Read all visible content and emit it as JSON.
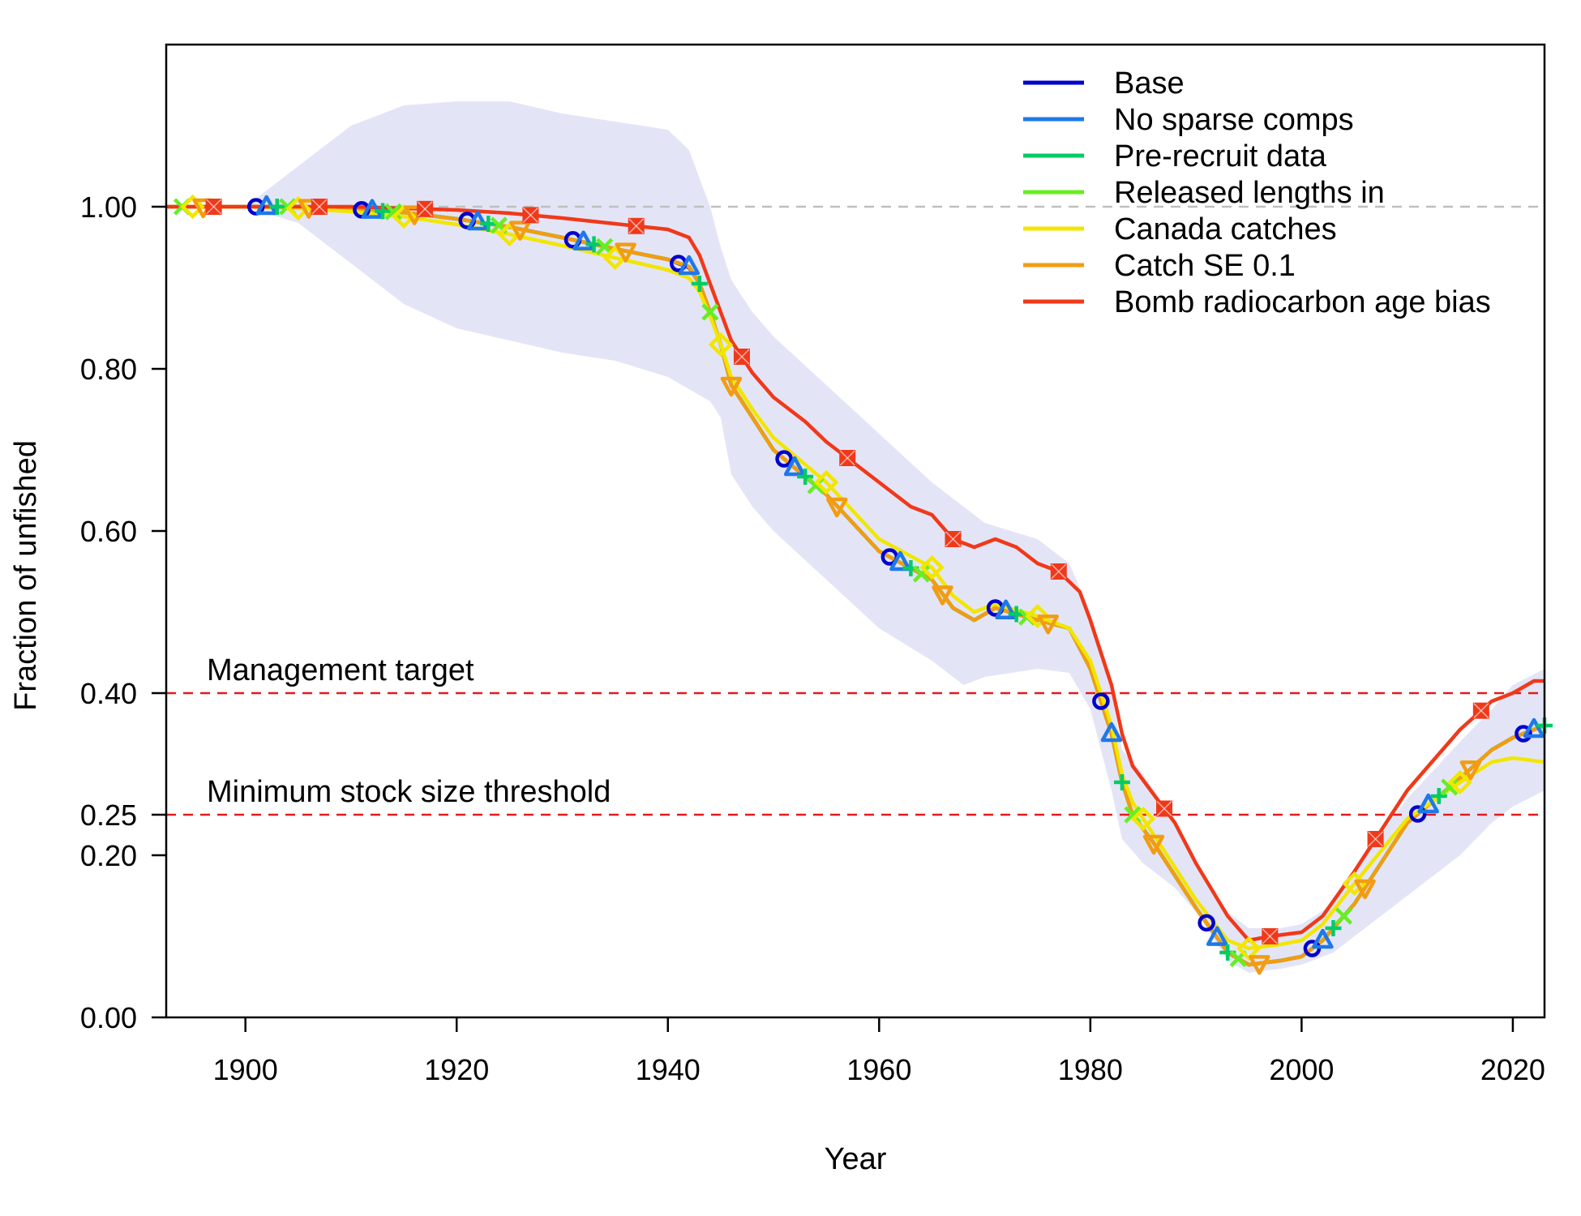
{
  "chart_data": {
    "type": "line",
    "xlabel": "Year",
    "ylabel": "Fraction of unfished",
    "xlim": [
      1892.5,
      2023
    ],
    "ylim": [
      0,
      1.2
    ],
    "x_ticks": [
      1900,
      1920,
      1940,
      1960,
      1980,
      2000,
      2020
    ],
    "y_ticks": [
      0.0,
      0.2,
      0.25,
      0.4,
      0.6,
      0.8,
      1.0
    ],
    "y_tick_labels": [
      "0.00",
      "0.20",
      "0.25",
      "0.40",
      "0.60",
      "0.80",
      "1.00"
    ],
    "legend_position": "top-right",
    "reference_lines": [
      {
        "y": 1.0,
        "color": "#bfbfbf",
        "style": "dashed",
        "label": ""
      },
      {
        "y": 0.4,
        "color": "#e41a1c",
        "style": "dashed",
        "label": "Management target"
      },
      {
        "y": 0.25,
        "color": "#e41a1c",
        "style": "dashed",
        "label": "Minimum stock size threshold"
      }
    ],
    "uncertainty_band": {
      "color": "#e3e5f7",
      "x": [
        1892,
        1900,
        1905,
        1910,
        1915,
        1920,
        1925,
        1930,
        1935,
        1940,
        1942,
        1944,
        1945,
        1946,
        1948,
        1950,
        1955,
        1960,
        1965,
        1968,
        1970,
        1975,
        1978,
        1980,
        1982,
        1983,
        1985,
        1988,
        1990,
        1993,
        1995,
        1998,
        2000,
        2003,
        2005,
        2010,
        2015,
        2018,
        2020,
        2023
      ],
      "lower": [
        1.0,
        1.0,
        0.98,
        0.93,
        0.88,
        0.85,
        0.835,
        0.82,
        0.81,
        0.79,
        0.775,
        0.76,
        0.74,
        0.67,
        0.63,
        0.6,
        0.54,
        0.48,
        0.44,
        0.41,
        0.42,
        0.43,
        0.425,
        0.38,
        0.28,
        0.22,
        0.19,
        0.16,
        0.13,
        0.07,
        0.055,
        0.06,
        0.065,
        0.08,
        0.1,
        0.15,
        0.2,
        0.24,
        0.26,
        0.28
      ],
      "upper": [
        1.0,
        1.0,
        1.05,
        1.1,
        1.125,
        1.13,
        1.13,
        1.115,
        1.105,
        1.095,
        1.07,
        1.0,
        0.95,
        0.91,
        0.87,
        0.84,
        0.78,
        0.72,
        0.66,
        0.63,
        0.61,
        0.59,
        0.56,
        0.5,
        0.4,
        0.33,
        0.3,
        0.24,
        0.19,
        0.13,
        0.11,
        0.11,
        0.115,
        0.14,
        0.18,
        0.27,
        0.34,
        0.38,
        0.41,
        0.43
      ]
    },
    "series": [
      {
        "name": "Base",
        "color": "#0000CC",
        "marker": "circle",
        "x": [
          1892,
          1900,
          1905,
          1910,
          1915,
          1920,
          1925,
          1930,
          1935,
          1940,
          1942,
          1943,
          1944,
          1945,
          1946,
          1948,
          1950,
          1955,
          1960,
          1965,
          1967,
          1969,
          1971,
          1975,
          1978,
          1980,
          1982,
          1983,
          1984,
          1986,
          1988,
          1990,
          1993,
          1995,
          1998,
          2000,
          2002,
          2005,
          2010,
          2015,
          2018,
          2020,
          2023
        ],
        "y": [
          1.0,
          1.0,
          1.0,
          0.997,
          0.993,
          0.985,
          0.975,
          0.962,
          0.948,
          0.935,
          0.925,
          0.905,
          0.87,
          0.83,
          0.78,
          0.74,
          0.7,
          0.645,
          0.575,
          0.54,
          0.505,
          0.49,
          0.505,
          0.49,
          0.48,
          0.43,
          0.35,
          0.29,
          0.25,
          0.215,
          0.175,
          0.135,
          0.08,
          0.065,
          0.07,
          0.075,
          0.095,
          0.14,
          0.24,
          0.295,
          0.33,
          0.345,
          0.36
        ],
        "marker_x": [
          1901,
          1911,
          1921,
          1931,
          1941,
          1951,
          1961,
          1971,
          1981,
          1991,
          2001,
          2011,
          2021
        ]
      },
      {
        "name": "No sparse comps",
        "color": "#1F78E8",
        "marker": "triangle",
        "x": [
          1892,
          1900,
          1905,
          1910,
          1915,
          1920,
          1925,
          1930,
          1935,
          1940,
          1942,
          1943,
          1944,
          1945,
          1946,
          1948,
          1950,
          1955,
          1960,
          1965,
          1967,
          1969,
          1971,
          1975,
          1978,
          1980,
          1982,
          1983,
          1984,
          1986,
          1988,
          1990,
          1993,
          1995,
          1998,
          2000,
          2002,
          2005,
          2010,
          2015,
          2018,
          2020,
          2023
        ],
        "y": [
          1.0,
          1.0,
          1.0,
          0.997,
          0.993,
          0.985,
          0.975,
          0.962,
          0.948,
          0.935,
          0.926,
          0.905,
          0.87,
          0.83,
          0.78,
          0.74,
          0.7,
          0.645,
          0.575,
          0.54,
          0.505,
          0.49,
          0.505,
          0.49,
          0.48,
          0.43,
          0.35,
          0.29,
          0.25,
          0.215,
          0.175,
          0.135,
          0.08,
          0.065,
          0.07,
          0.075,
          0.095,
          0.14,
          0.24,
          0.295,
          0.33,
          0.345,
          0.36
        ],
        "marker_x": [
          1902,
          1912,
          1922,
          1932,
          1942,
          1952,
          1962,
          1972,
          1982,
          1992,
          2002,
          2012,
          2022
        ]
      },
      {
        "name": "Pre-recruit data",
        "color": "#00CC66",
        "marker": "plus",
        "x": [
          1892,
          1900,
          1905,
          1910,
          1915,
          1920,
          1925,
          1930,
          1935,
          1940,
          1942,
          1943,
          1944,
          1945,
          1946,
          1948,
          1950,
          1955,
          1960,
          1965,
          1967,
          1969,
          1971,
          1975,
          1978,
          1980,
          1982,
          1983,
          1984,
          1986,
          1988,
          1990,
          1993,
          1995,
          1998,
          2000,
          2002,
          2005,
          2010,
          2015,
          2018,
          2020,
          2023
        ],
        "y": [
          1.0,
          1.0,
          1.0,
          0.997,
          0.993,
          0.985,
          0.975,
          0.962,
          0.948,
          0.935,
          0.926,
          0.905,
          0.87,
          0.83,
          0.78,
          0.74,
          0.7,
          0.645,
          0.575,
          0.54,
          0.505,
          0.49,
          0.505,
          0.49,
          0.48,
          0.43,
          0.35,
          0.29,
          0.25,
          0.215,
          0.175,
          0.135,
          0.08,
          0.065,
          0.07,
          0.075,
          0.095,
          0.14,
          0.24,
          0.295,
          0.33,
          0.345,
          0.36
        ],
        "marker_x": [
          1903,
          1913,
          1923,
          1933,
          1943,
          1953,
          1963,
          1973,
          1983,
          1993,
          2003,
          2013,
          2023
        ]
      },
      {
        "name": "Released lengths in",
        "color": "#66EE22",
        "marker": "cross",
        "x": [
          1892,
          1900,
          1905,
          1910,
          1915,
          1920,
          1925,
          1930,
          1935,
          1940,
          1942,
          1943,
          1944,
          1945,
          1946,
          1948,
          1950,
          1955,
          1960,
          1965,
          1967,
          1969,
          1971,
          1975,
          1978,
          1980,
          1982,
          1983,
          1984,
          1986,
          1988,
          1990,
          1993,
          1995,
          1998,
          2000,
          2002,
          2005,
          2010,
          2015,
          2018,
          2020,
          2023
        ],
        "y": [
          1.0,
          1.0,
          1.0,
          0.997,
          0.993,
          0.985,
          0.975,
          0.962,
          0.948,
          0.935,
          0.926,
          0.905,
          0.87,
          0.83,
          0.78,
          0.74,
          0.7,
          0.645,
          0.575,
          0.54,
          0.505,
          0.49,
          0.505,
          0.49,
          0.48,
          0.43,
          0.35,
          0.29,
          0.25,
          0.215,
          0.175,
          0.135,
          0.08,
          0.065,
          0.07,
          0.075,
          0.095,
          0.14,
          0.24,
          0.295,
          0.33,
          0.345,
          0.36
        ],
        "marker_x": [
          1894,
          1904,
          1914,
          1924,
          1934,
          1944,
          1954,
          1964,
          1974,
          1984,
          1994,
          2004,
          2014
        ]
      },
      {
        "name": "Canada catches",
        "color": "#F2E600",
        "marker": "diamond",
        "x": [
          1892,
          1900,
          1905,
          1910,
          1915,
          1920,
          1925,
          1930,
          1935,
          1940,
          1942,
          1943,
          1944,
          1945,
          1946,
          1948,
          1950,
          1955,
          1960,
          1965,
          1967,
          1969,
          1971,
          1975,
          1978,
          1980,
          1982,
          1983,
          1984,
          1986,
          1988,
          1990,
          1993,
          1995,
          1998,
          2000,
          2002,
          2005,
          2010,
          2015,
          2018,
          2020,
          2023
        ],
        "y": [
          1.0,
          1.0,
          0.998,
          0.994,
          0.988,
          0.978,
          0.966,
          0.952,
          0.937,
          0.922,
          0.912,
          0.895,
          0.865,
          0.83,
          0.79,
          0.75,
          0.715,
          0.66,
          0.59,
          0.555,
          0.52,
          0.5,
          0.51,
          0.495,
          0.48,
          0.44,
          0.36,
          0.3,
          0.265,
          0.225,
          0.185,
          0.145,
          0.095,
          0.085,
          0.09,
          0.095,
          0.115,
          0.165,
          0.245,
          0.29,
          0.315,
          0.32,
          0.315
        ],
        "marker_x": [
          1895,
          1905,
          1915,
          1925,
          1935,
          1945,
          1955,
          1965,
          1975,
          1985,
          1995,
          2005,
          2015
        ]
      },
      {
        "name": "Catch SE 0.1",
        "color": "#F39C12",
        "marker": "triangle-down",
        "x": [
          1892,
          1900,
          1905,
          1910,
          1915,
          1920,
          1925,
          1930,
          1935,
          1940,
          1942,
          1943,
          1944,
          1945,
          1946,
          1948,
          1950,
          1955,
          1960,
          1965,
          1967,
          1969,
          1971,
          1975,
          1978,
          1980,
          1982,
          1983,
          1984,
          1986,
          1988,
          1990,
          1993,
          1995,
          1998,
          2000,
          2002,
          2005,
          2010,
          2015,
          2018,
          2020,
          2023
        ],
        "y": [
          1.0,
          1.0,
          1.0,
          0.997,
          0.993,
          0.985,
          0.975,
          0.962,
          0.948,
          0.935,
          0.926,
          0.905,
          0.87,
          0.83,
          0.78,
          0.74,
          0.7,
          0.645,
          0.575,
          0.54,
          0.505,
          0.49,
          0.505,
          0.49,
          0.48,
          0.43,
          0.35,
          0.29,
          0.25,
          0.215,
          0.175,
          0.135,
          0.08,
          0.065,
          0.07,
          0.075,
          0.095,
          0.14,
          0.24,
          0.295,
          0.33,
          0.345,
          0.36
        ],
        "marker_x": [
          1896,
          1906,
          1916,
          1926,
          1936,
          1946,
          1956,
          1966,
          1976,
          1986,
          1996,
          2006,
          2016
        ]
      },
      {
        "name": "Bomb radiocarbon age bias",
        "color": "#F0391A",
        "marker": "square-cross",
        "x": [
          1892,
          1900,
          1905,
          1910,
          1915,
          1920,
          1925,
          1930,
          1935,
          1940,
          1942,
          1943,
          1944,
          1945,
          1946,
          1948,
          1950,
          1953,
          1955,
          1958,
          1960,
          1963,
          1965,
          1967,
          1969,
          1971,
          1973,
          1975,
          1977,
          1979,
          1980,
          1982,
          1983,
          1984,
          1986,
          1988,
          1990,
          1993,
          1995,
          1997,
          2000,
          2002,
          2005,
          2010,
          2015,
          2018,
          2020,
          2022,
          2023
        ],
        "y": [
          1.0,
          1.0,
          1.0,
          1.0,
          0.998,
          0.996,
          0.992,
          0.986,
          0.979,
          0.972,
          0.962,
          0.94,
          0.905,
          0.87,
          0.835,
          0.795,
          0.765,
          0.735,
          0.71,
          0.68,
          0.66,
          0.63,
          0.62,
          0.59,
          0.58,
          0.59,
          0.58,
          0.56,
          0.55,
          0.525,
          0.49,
          0.41,
          0.35,
          0.31,
          0.275,
          0.24,
          0.19,
          0.125,
          0.095,
          0.1,
          0.105,
          0.125,
          0.18,
          0.28,
          0.355,
          0.39,
          0.4,
          0.415,
          0.415
        ],
        "marker_x": [
          1897,
          1907,
          1917,
          1927,
          1937,
          1947,
          1957,
          1967,
          1977,
          1987,
          1997,
          2007,
          2017
        ]
      }
    ]
  }
}
